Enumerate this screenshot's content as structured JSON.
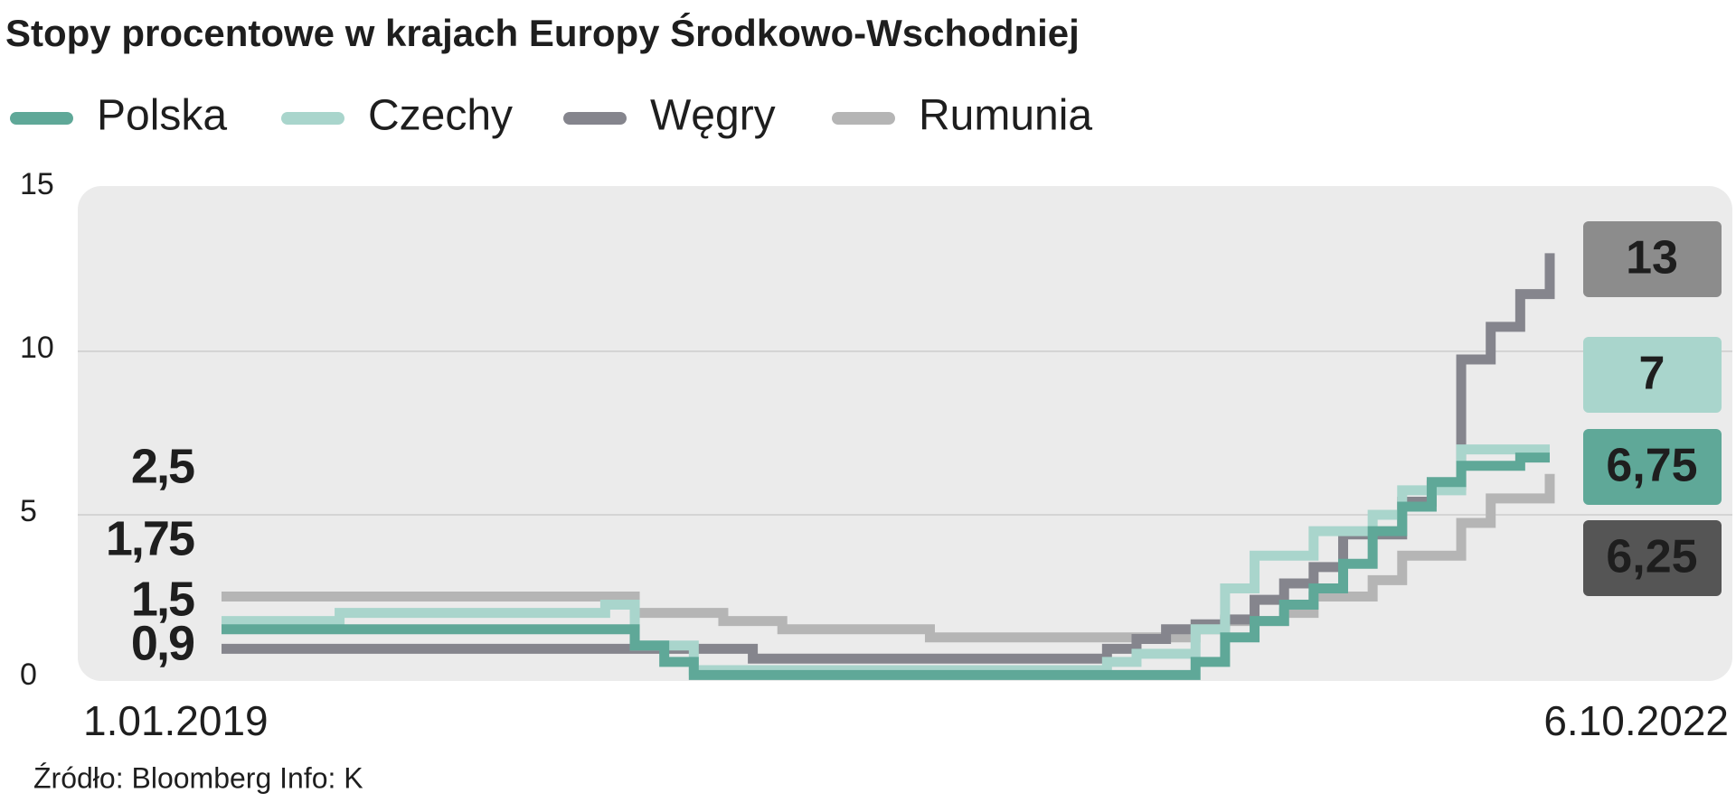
{
  "chart_data": {
    "type": "step-line",
    "title": "Stopy procentowe w krajach Europy Środkowo-Wschodniej",
    "source": "Źródło: Bloomberg  Info: K",
    "categories": [
      "1.01.2019",
      null,
      null,
      null,
      null,
      null,
      null,
      null,
      null,
      null,
      null,
      null,
      null,
      null,
      null,
      null,
      null,
      null,
      null,
      null,
      null,
      null,
      null,
      null,
      null,
      null,
      null,
      null,
      null,
      null,
      null,
      null,
      null,
      null,
      null,
      null,
      null,
      null,
      null,
      null,
      null,
      null,
      null,
      null,
      null,
      "6.10.2022"
    ],
    "ylim": [
      0,
      15
    ],
    "yticks": [
      0,
      5,
      10,
      15
    ],
    "grid": true,
    "series": [
      {
        "name": "Polska",
        "color": "#5fa898",
        "label_color": "#5fa898",
        "values": [
          1.5,
          1.5,
          1.5,
          1.5,
          1.5,
          1.5,
          1.5,
          1.5,
          1.5,
          1.5,
          1.5,
          1.5,
          1.5,
          1.5,
          1.0,
          0.5,
          0.1,
          0.1,
          0.1,
          0.1,
          0.1,
          0.1,
          0.1,
          0.1,
          0.1,
          0.1,
          0.1,
          0.1,
          0.1,
          0.1,
          0.1,
          0.1,
          0.1,
          0.5,
          1.25,
          1.75,
          2.25,
          2.75,
          3.5,
          4.5,
          5.25,
          6.0,
          6.5,
          6.5,
          6.75,
          6.75
        ],
        "value_labels": [
          "1,5",
          null,
          null,
          null,
          null,
          null,
          null,
          null,
          null,
          null,
          null,
          null,
          null,
          null,
          null,
          null,
          null,
          null,
          null,
          null,
          null,
          null,
          null,
          null,
          null,
          null,
          null,
          null,
          null,
          null,
          null,
          null,
          null,
          null,
          null,
          null,
          null,
          null,
          null,
          null,
          null,
          null,
          null,
          null,
          null,
          "6,75"
        ]
      },
      {
        "name": "Czechy",
        "color": "#a9d5cc",
        "label_color": "#a9d5cc",
        "values": [
          1.75,
          1.75,
          1.75,
          1.75,
          2.0,
          2.0,
          2.0,
          2.0,
          2.0,
          2.0,
          2.0,
          2.0,
          2.0,
          2.25,
          1.0,
          1.0,
          0.25,
          0.25,
          0.25,
          0.25,
          0.25,
          0.25,
          0.25,
          0.25,
          0.25,
          0.25,
          0.25,
          0.25,
          0.25,
          0.25,
          0.5,
          0.75,
          0.75,
          1.5,
          2.75,
          3.75,
          3.75,
          4.5,
          4.5,
          5.0,
          5.75,
          5.75,
          7.0,
          7.0,
          7.0,
          7.0
        ],
        "value_labels": [
          "1,75",
          null,
          null,
          null,
          null,
          null,
          null,
          null,
          null,
          null,
          null,
          null,
          null,
          null,
          null,
          null,
          null,
          null,
          null,
          null,
          null,
          null,
          null,
          null,
          null,
          null,
          null,
          null,
          null,
          null,
          null,
          null,
          null,
          null,
          null,
          null,
          null,
          null,
          null,
          null,
          null,
          null,
          null,
          null,
          null,
          "7"
        ]
      },
      {
        "name": "Węgry",
        "color": "#85858d",
        "label_color": "#8c8c8c",
        "values": [
          0.9,
          0.9,
          0.9,
          0.9,
          0.9,
          0.9,
          0.9,
          0.9,
          0.9,
          0.9,
          0.9,
          0.9,
          0.9,
          0.9,
          0.9,
          0.9,
          0.9,
          0.9,
          0.6,
          0.6,
          0.6,
          0.6,
          0.6,
          0.6,
          0.6,
          0.6,
          0.6,
          0.6,
          0.6,
          0.6,
          0.9,
          1.2,
          1.5,
          1.65,
          1.8,
          2.4,
          2.9,
          3.4,
          4.4,
          4.4,
          5.4,
          5.9,
          9.75,
          10.75,
          11.75,
          13
        ],
        "value_labels": [
          "0,9",
          null,
          null,
          null,
          null,
          null,
          null,
          null,
          null,
          null,
          null,
          null,
          null,
          null,
          null,
          null,
          null,
          null,
          null,
          null,
          null,
          null,
          null,
          null,
          null,
          null,
          null,
          null,
          null,
          null,
          null,
          null,
          null,
          null,
          null,
          null,
          null,
          null,
          null,
          null,
          null,
          null,
          null,
          null,
          null,
          "13"
        ]
      },
      {
        "name": "Rumunia",
        "color": "#b5b5b5",
        "label_color": "#555555",
        "values": [
          2.5,
          2.5,
          2.5,
          2.5,
          2.5,
          2.5,
          2.5,
          2.5,
          2.5,
          2.5,
          2.5,
          2.5,
          2.5,
          2.5,
          2.0,
          2.0,
          2.0,
          1.75,
          1.75,
          1.5,
          1.5,
          1.5,
          1.5,
          1.5,
          1.25,
          1.25,
          1.25,
          1.25,
          1.25,
          1.25,
          1.25,
          1.25,
          1.25,
          1.5,
          1.75,
          1.75,
          2.0,
          2.5,
          2.5,
          3.0,
          3.75,
          3.75,
          4.75,
          5.5,
          5.5,
          6.25
        ],
        "value_labels": [
          "2,5",
          null,
          null,
          null,
          null,
          null,
          null,
          null,
          null,
          null,
          null,
          null,
          null,
          null,
          null,
          null,
          null,
          null,
          null,
          null,
          null,
          null,
          null,
          null,
          null,
          null,
          null,
          null,
          null,
          null,
          null,
          null,
          null,
          null,
          null,
          null,
          null,
          null,
          null,
          null,
          null,
          null,
          null,
          null,
          null,
          "6,25"
        ]
      }
    ]
  }
}
